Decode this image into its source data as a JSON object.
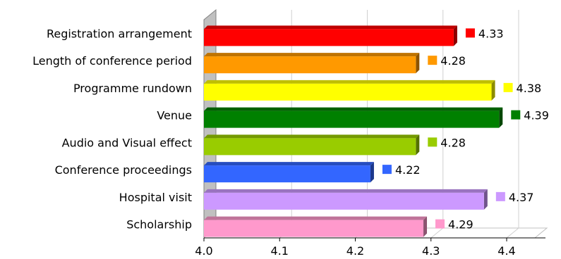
{
  "chart_data": {
    "type": "bar",
    "orientation": "horizontal",
    "title": "",
    "xlabel": "",
    "ylabel": "",
    "xlim": [
      4.0,
      4.4
    ],
    "grid": true,
    "legend": "none",
    "style": "3d",
    "ticks": [
      "4.0",
      "4.1",
      "4.2",
      "4.3",
      "4.4"
    ],
    "categories": [
      "Registration arrangement",
      "Length of conference period",
      "Programme rundown",
      "Venue",
      "Audio and Visual effect",
      "Conference proceedings",
      "Hospital visit",
      "Scholarship"
    ],
    "values": [
      4.33,
      4.28,
      4.38,
      4.39,
      4.28,
      4.22,
      4.37,
      4.29
    ],
    "value_labels": [
      "4.33",
      "4.28",
      "4.38",
      "4.39",
      "4.28",
      "4.22",
      "4.37",
      "4.29"
    ],
    "colors": [
      "#ff0000",
      "#ff9900",
      "#ffff00",
      "#008000",
      "#99cc00",
      "#3366ff",
      "#cc99ff",
      "#ff99cc"
    ]
  }
}
